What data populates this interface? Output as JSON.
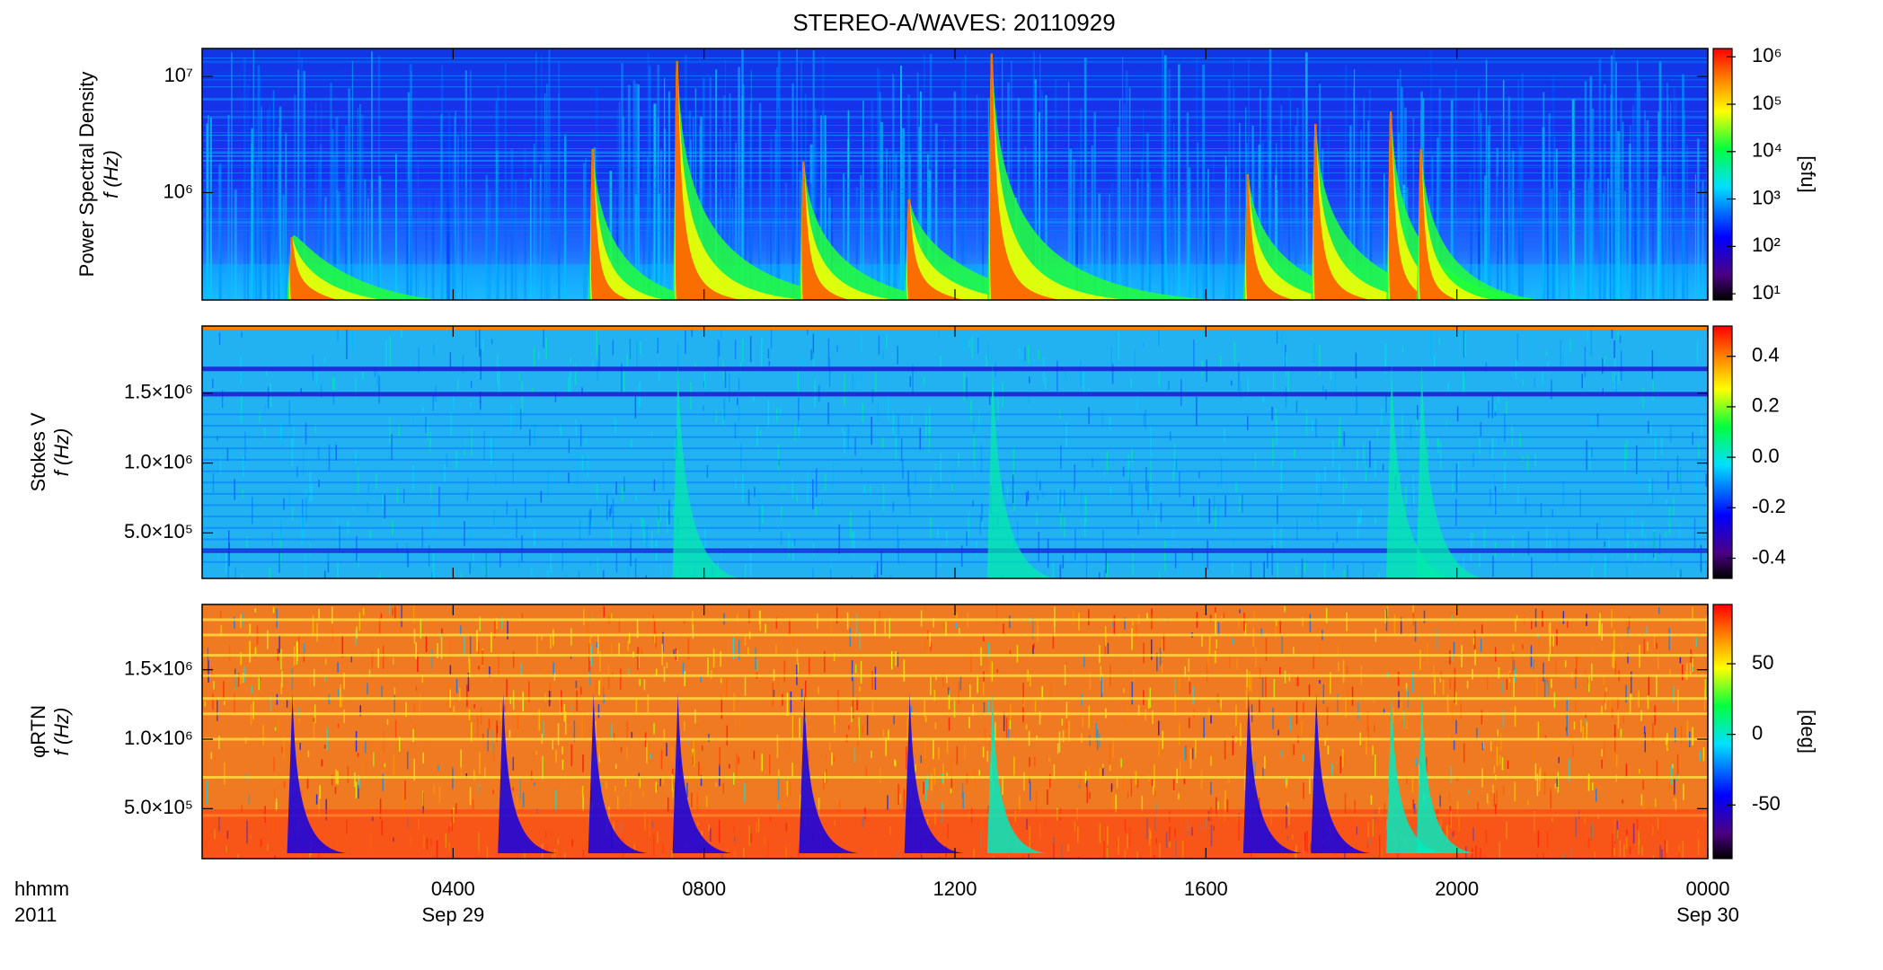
{
  "chart_data": [
    {
      "type": "heatmap",
      "title": "STEREO-A/WAVES: 20110929",
      "ylabel_top": "Power Spectral Density",
      "ylabel": "f (Hz)",
      "ylog": true,
      "ylim": [
        119000,
        17400000
      ],
      "yticks": [
        {
          "value": 1000000,
          "label": "10⁶"
        },
        {
          "value": 10000000,
          "label": "10⁷"
        }
      ],
      "colorbar_label": "[sfu]",
      "clog": true,
      "clim": [
        7.4,
        1500000
      ],
      "cticks": [
        {
          "value": 10,
          "label": "10¹"
        },
        {
          "value": 100,
          "label": "10²"
        },
        {
          "value": 1000,
          "label": "10³"
        },
        {
          "value": 10000,
          "label": "10⁴"
        },
        {
          "value": 100000,
          "label": "10⁵"
        },
        {
          "value": 1000000,
          "label": "10⁶"
        }
      ]
    },
    {
      "type": "heatmap",
      "ylabel_top": "Stokes V",
      "ylabel": "f (Hz)",
      "ylog": false,
      "ylim": [
        175000,
        1980000
      ],
      "yticks": [
        {
          "value": 500000,
          "label": "5.0×10⁵"
        },
        {
          "value": 1000000,
          "label": "1.0×10⁶"
        },
        {
          "value": 1500000,
          "label": "1.5×10⁶"
        }
      ],
      "clog": false,
      "clim": [
        -0.48,
        0.52
      ],
      "cticks": [
        -0.4,
        -0.2,
        {
          "value": 0,
          "label": "0.0"
        },
        0.2,
        0.4
      ]
    },
    {
      "type": "heatmap",
      "ylabel_top": "φRTN",
      "ylabel": "f (Hz)",
      "ylog": false,
      "ylim": [
        140000,
        1970000
      ],
      "yticks": [
        {
          "value": 500000,
          "label": "5.0×10⁵"
        },
        {
          "value": 1000000,
          "label": "1.0×10⁶"
        },
        {
          "value": 1500000,
          "label": "1.5×10⁶"
        }
      ],
      "colorbar_label": "[deg]",
      "clog": false,
      "clim": [
        -88,
        92
      ],
      "cticks": [
        -50,
        0,
        50
      ],
      "xlabel": "hhmm",
      "xlabel_year": "2011",
      "xlim": [
        0,
        24
      ],
      "xticks": [
        {
          "value": 4,
          "label": "0400"
        },
        {
          "value": 8,
          "label": "0800"
        },
        {
          "value": 12,
          "label": "1200"
        },
        {
          "value": 16,
          "label": "1600"
        },
        {
          "value": 20,
          "label": "2000"
        },
        {
          "value": 24,
          "label": "0000"
        }
      ],
      "xtick_dates": [
        "Sep 29",
        null,
        null,
        null,
        null,
        "Sep 30"
      ]
    }
  ]
}
